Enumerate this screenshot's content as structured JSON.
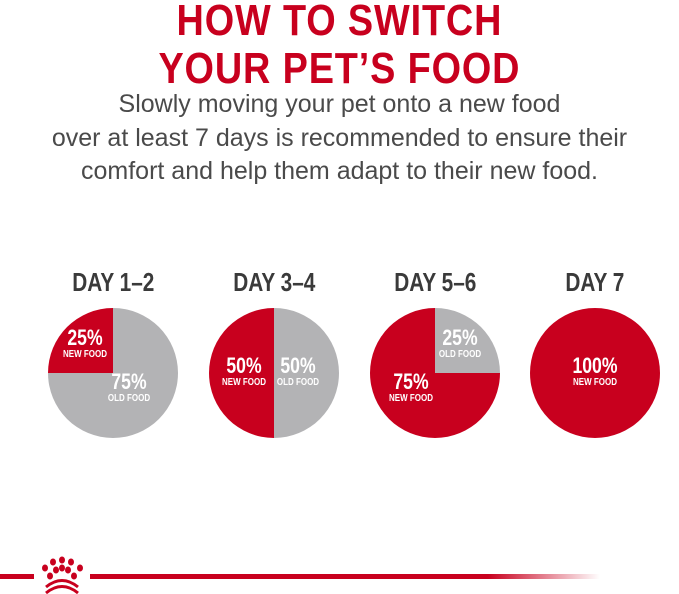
{
  "title": {
    "line1": "HOW TO SWITCH",
    "line2": "YOUR PET’S FOOD"
  },
  "subtitle": {
    "line1": "Slowly moving your pet onto a new food",
    "line2": "over at least 7 days is recommended to ensure their",
    "line3": "comfort and help them adapt to their new food."
  },
  "colors": {
    "new_food": "#c8001e",
    "old_food": "#b3b3b5",
    "accent": "#c8001e"
  },
  "logo": {
    "icon": "royal-canin-crown-icon"
  },
  "chart_data": {
    "type": "pie",
    "charts": [
      {
        "title": "DAY 1–2",
        "slices": [
          {
            "label": "NEW FOOD",
            "value": 25,
            "text": "25%"
          },
          {
            "label": "OLD FOOD",
            "value": 75,
            "text": "75%"
          }
        ]
      },
      {
        "title": "DAY 3–4",
        "slices": [
          {
            "label": "NEW FOOD",
            "value": 50,
            "text": "50%"
          },
          {
            "label": "OLD FOOD",
            "value": 50,
            "text": "50%"
          }
        ]
      },
      {
        "title": "DAY 5–6",
        "slices": [
          {
            "label": "NEW FOOD",
            "value": 75,
            "text": "75%"
          },
          {
            "label": "OLD FOOD",
            "value": 25,
            "text": "25%"
          }
        ]
      },
      {
        "title": "DAY 7",
        "slices": [
          {
            "label": "NEW FOOD",
            "value": 100,
            "text": "100%"
          }
        ]
      }
    ]
  }
}
